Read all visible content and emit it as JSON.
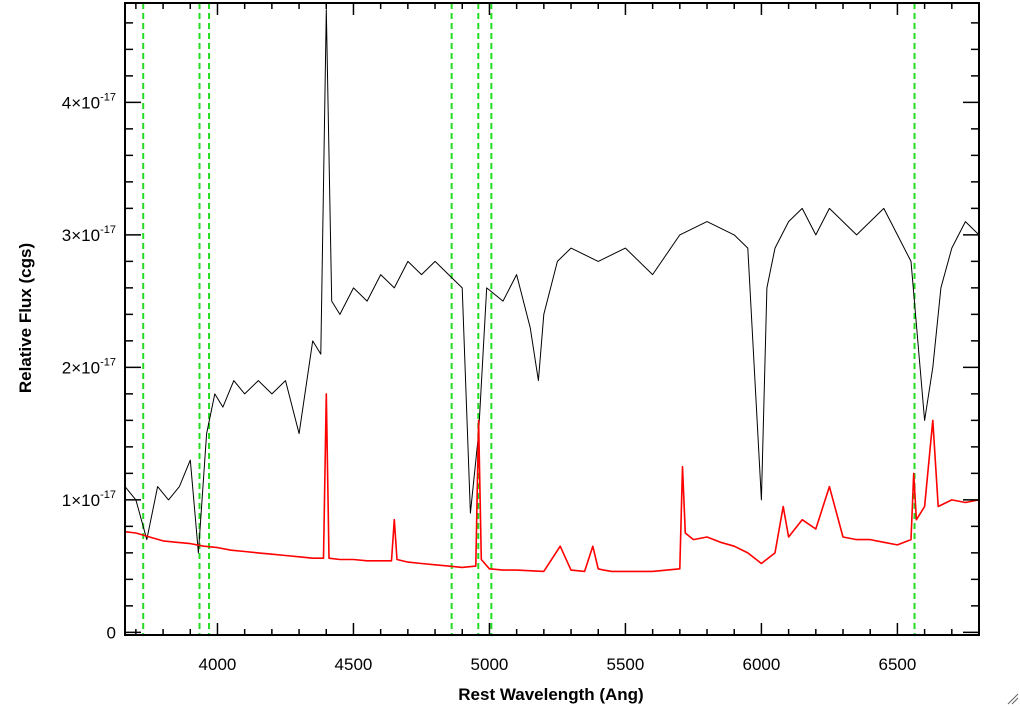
{
  "chart_data": {
    "type": "line",
    "xlabel": "Rest Wavelength (Ang)",
    "ylabel": "Relative Flux (cgs)",
    "xlim": [
      3660,
      6800
    ],
    "ylim": [
      -2e-19,
      4.75e-17
    ],
    "x_ticks": [
      {
        "value": 4000,
        "label": "4000"
      },
      {
        "value": 4500,
        "label": "4500"
      },
      {
        "value": 5000,
        "label": "5000"
      },
      {
        "value": 5500,
        "label": "5500"
      },
      {
        "value": 6000,
        "label": "6000"
      },
      {
        "value": 6500,
        "label": "6500"
      }
    ],
    "y_ticks": [
      {
        "value": 0,
        "label": "0"
      },
      {
        "value": 1e-17,
        "label": "1×10",
        "exp": "-17"
      },
      {
        "value": 2e-17,
        "label": "2×10",
        "exp": "-17"
      },
      {
        "value": 3e-17,
        "label": "3×10",
        "exp": "-17"
      },
      {
        "value": 4e-17,
        "label": "4×10",
        "exp": "-17"
      }
    ],
    "grid": false,
    "series": [
      {
        "color": "#000000",
        "x": [
          3660,
          3700,
          3740,
          3780,
          3820,
          3860,
          3900,
          3930,
          3960,
          3990,
          4020,
          4060,
          4100,
          4150,
          4200,
          4250,
          4300,
          4350,
          4380,
          4400,
          4420,
          4450,
          4500,
          4550,
          4600,
          4650,
          4700,
          4750,
          4800,
          4850,
          4900,
          4930,
          4960,
          4990,
          5050,
          5100,
          5150,
          5180,
          5200,
          5250,
          5300,
          5400,
          5500,
          5600,
          5700,
          5800,
          5900,
          5950,
          6000,
          6020,
          6050,
          6100,
          6150,
          6200,
          6250,
          6300,
          6350,
          6400,
          6450,
          6500,
          6550,
          6600,
          6630,
          6660,
          6700,
          6750,
          6800
        ],
        "y": [
          1.1e-17,
          1e-17,
          7e-18,
          1.1e-17,
          1e-17,
          1.1e-17,
          1.3e-17,
          6e-18,
          1.5e-17,
          1.8e-17,
          1.7e-17,
          1.9e-17,
          1.8e-17,
          1.9e-17,
          1.8e-17,
          1.9e-17,
          1.5e-17,
          2.2e-17,
          2.1e-17,
          4.7e-17,
          2.5e-17,
          2.4e-17,
          2.6e-17,
          2.5e-17,
          2.7e-17,
          2.6e-17,
          2.8e-17,
          2.7e-17,
          2.8e-17,
          2.7e-17,
          2.6e-17,
          9e-18,
          1.5e-17,
          2.6e-17,
          2.5e-17,
          2.7e-17,
          2.3e-17,
          1.9e-17,
          2.4e-17,
          2.8e-17,
          2.9e-17,
          2.8e-17,
          2.9e-17,
          2.7e-17,
          3e-17,
          3.1e-17,
          3e-17,
          2.9e-17,
          1e-17,
          2.6e-17,
          2.9e-17,
          3.1e-17,
          3.2e-17,
          3e-17,
          3.2e-17,
          3.1e-17,
          3e-17,
          3.1e-17,
          3.2e-17,
          3e-17,
          2.8e-17,
          1.6e-17,
          2e-17,
          2.6e-17,
          2.9e-17,
          3.1e-17,
          3e-17
        ]
      },
      {
        "color": "#ff0000",
        "x": [
          3660,
          3700,
          3750,
          3800,
          3850,
          3900,
          3950,
          4000,
          4050,
          4100,
          4150,
          4200,
          4250,
          4300,
          4350,
          4390,
          4400,
          4410,
          4450,
          4500,
          4550,
          4600,
          4640,
          4650,
          4660,
          4700,
          4750,
          4800,
          4850,
          4900,
          4950,
          4960,
          4970,
          5000,
          5050,
          5100,
          5200,
          5260,
          5300,
          5350,
          5380,
          5400,
          5420,
          5450,
          5500,
          5600,
          5700,
          5710,
          5720,
          5750,
          5800,
          5850,
          5900,
          5950,
          6000,
          6050,
          6080,
          6100,
          6150,
          6200,
          6250,
          6300,
          6350,
          6400,
          6450,
          6500,
          6550,
          6560,
          6570,
          6600,
          6630,
          6650,
          6700,
          6750,
          6800
        ],
        "y": [
          7.6e-18,
          7.5e-18,
          7.2e-18,
          6.9e-18,
          6.8e-18,
          6.7e-18,
          6.5e-18,
          6.4e-18,
          6.2e-18,
          6.1e-18,
          6e-18,
          5.9e-18,
          5.8e-18,
          5.7e-18,
          5.6e-18,
          5.6e-18,
          1.8e-17,
          5.6e-18,
          5.5e-18,
          5.5e-18,
          5.4e-18,
          5.4e-18,
          5.4e-18,
          8.5e-18,
          5.5e-18,
          5.3e-18,
          5.2e-18,
          5.1e-18,
          5e-18,
          4.9e-18,
          5e-18,
          1.6e-17,
          5.5e-18,
          4.8e-18,
          4.7e-18,
          4.7e-18,
          4.6e-18,
          6.5e-18,
          4.7e-18,
          4.6e-18,
          6.5e-18,
          4.8e-18,
          4.7e-18,
          4.6e-18,
          4.6e-18,
          4.6e-18,
          4.8e-18,
          1.25e-17,
          7.5e-18,
          7e-18,
          7.2e-18,
          6.8e-18,
          6.5e-18,
          6e-18,
          5.2e-18,
          6e-18,
          9.5e-18,
          7.2e-18,
          8.5e-18,
          7.8e-18,
          1.1e-17,
          7.2e-18,
          7e-18,
          7e-18,
          6.8e-18,
          6.6e-18,
          7e-18,
          1.2e-17,
          8.5e-18,
          9.5e-18,
          1.6e-17,
          9.5e-18,
          1e-17,
          9.8e-18,
          1e-17
        ]
      }
    ],
    "vertical_lines": [
      {
        "x": 3727,
        "color": "#00cc00",
        "style": "dashed"
      },
      {
        "x": 3934,
        "color": "#00cc00",
        "style": "dashed"
      },
      {
        "x": 3969,
        "color": "#00cc00",
        "style": "dashed"
      },
      {
        "x": 4861,
        "color": "#00cc00",
        "style": "dashed"
      },
      {
        "x": 4959,
        "color": "#00cc00",
        "style": "dashed"
      },
      {
        "x": 5007,
        "color": "#00cc00",
        "style": "dashed"
      },
      {
        "x": 6563,
        "color": "#00cc00",
        "style": "dashed"
      }
    ]
  }
}
